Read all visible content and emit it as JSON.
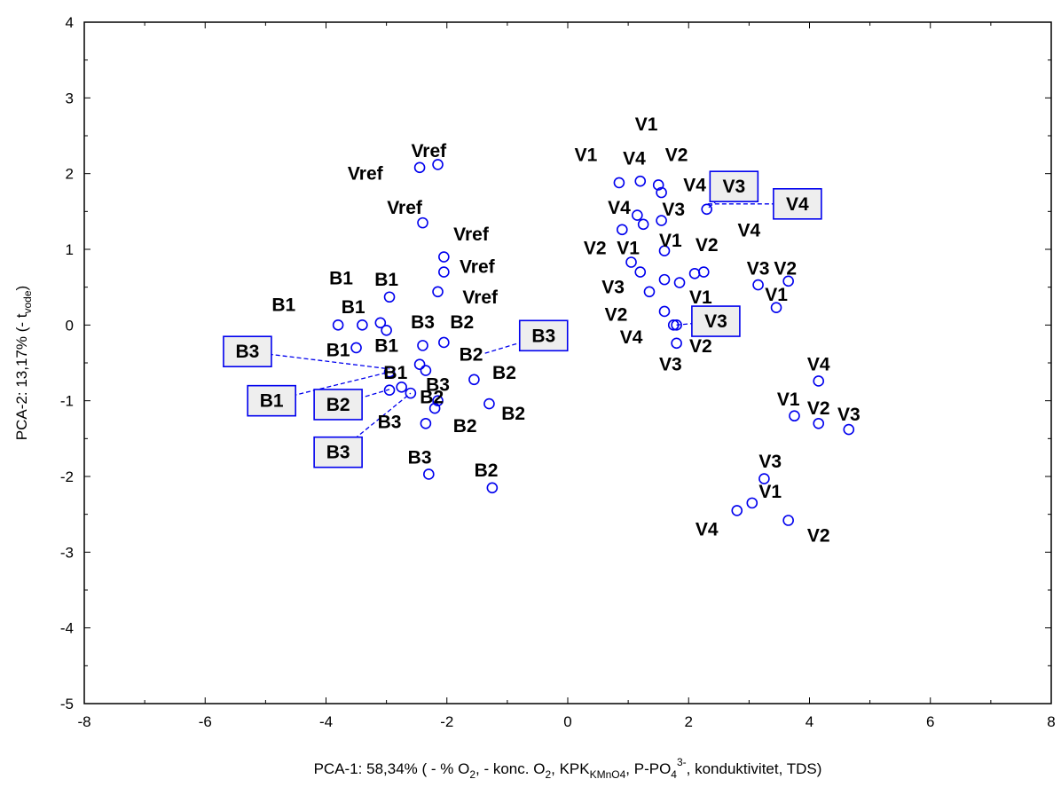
{
  "chart_data": {
    "type": "scatter",
    "xlabel_parts": [
      "PCA-1: 58,34% ( - % O",
      "2",
      ", - konc. O",
      "2",
      ", KPK",
      "KMnO4",
      ", P-PO",
      "4",
      "3-",
      ", konduktivitet, TDS)"
    ],
    "ylabel_parts": [
      "PCA-2: 13,17% (- t",
      "vode",
      ")"
    ],
    "xlim": [
      -8,
      8
    ],
    "ylim": [
      -5,
      4
    ],
    "xticks": [
      "-8",
      "-6",
      "-4",
      "-2",
      "0",
      "2",
      "4",
      "6",
      "8"
    ],
    "yticks": [
      "-5",
      "-4",
      "-3",
      "-2",
      "-1",
      "0",
      "1",
      "2",
      "3",
      "4"
    ],
    "grid": false,
    "marker_color": "#0000ee",
    "points": [
      {
        "x": -2.45,
        "y": 2.08,
        "label": "Vref"
      },
      {
        "x": -2.15,
        "y": 2.12,
        "label": "Vref"
      },
      {
        "x": -2.4,
        "y": 1.35,
        "label": "Vref"
      },
      {
        "x": -2.05,
        "y": 0.9,
        "label": "Vref"
      },
      {
        "x": -2.05,
        "y": 0.7,
        "label": "Vref"
      },
      {
        "x": -2.15,
        "y": 0.44,
        "label": "Vref"
      },
      {
        "x": -3.8,
        "y": 0.0,
        "label": "B1"
      },
      {
        "x": -3.4,
        "y": 0.0,
        "label": "B1"
      },
      {
        "x": -2.95,
        "y": 0.37,
        "label": "B1"
      },
      {
        "x": -3.5,
        "y": -0.3,
        "label": "B1"
      },
      {
        "x": -3.1,
        "y": 0.03,
        "label": "B1"
      },
      {
        "x": -3.0,
        "y": -0.07,
        "label": "B1"
      },
      {
        "x": -2.95,
        "y": -0.62,
        "label": "B1"
      },
      {
        "x": -2.75,
        "y": -0.82,
        "label": "B1"
      },
      {
        "x": -2.4,
        "y": -0.27,
        "label": "B3"
      },
      {
        "x": -2.05,
        "y": -0.23,
        "label": "B2"
      },
      {
        "x": -2.45,
        "y": -0.52,
        "label": "B3"
      },
      {
        "x": -2.35,
        "y": -0.6,
        "label": "B2"
      },
      {
        "x": -1.55,
        "y": -0.72,
        "label": "B2"
      },
      {
        "x": -2.6,
        "y": -0.9,
        "label": "B3"
      },
      {
        "x": -2.95,
        "y": -0.86,
        "label": "B2"
      },
      {
        "x": -2.15,
        "y": -1.0,
        "label": "B3"
      },
      {
        "x": -2.2,
        "y": -1.1,
        "label": "B2"
      },
      {
        "x": -2.35,
        "y": -1.3,
        "label": "B3"
      },
      {
        "x": -1.3,
        "y": -1.04,
        "label": "B2"
      },
      {
        "x": -2.3,
        "y": -1.97,
        "label": "B3"
      },
      {
        "x": -1.25,
        "y": -2.15,
        "label": "B2"
      },
      {
        "x": 0.85,
        "y": 1.88,
        "label": "V1"
      },
      {
        "x": 1.2,
        "y": 1.9,
        "label": "V4"
      },
      {
        "x": 1.5,
        "y": 1.85,
        "label": "V2"
      },
      {
        "x": 1.55,
        "y": 1.75,
        "label": "V1"
      },
      {
        "x": 2.3,
        "y": 1.53,
        "label": "V4"
      },
      {
        "x": 1.15,
        "y": 1.45,
        "label": "V4"
      },
      {
        "x": 1.25,
        "y": 1.33,
        "label": "V3"
      },
      {
        "x": 1.55,
        "y": 1.38,
        "label": "V3"
      },
      {
        "x": 0.9,
        "y": 1.26,
        "label": "V2"
      },
      {
        "x": 1.6,
        "y": 0.98,
        "label": "V1"
      },
      {
        "x": 1.05,
        "y": 0.83,
        "label": "V1"
      },
      {
        "x": 1.2,
        "y": 0.7,
        "label": "V2"
      },
      {
        "x": 2.1,
        "y": 0.68,
        "label": "V2"
      },
      {
        "x": 2.25,
        "y": 0.7,
        "label": "V4"
      },
      {
        "x": 1.6,
        "y": 0.6,
        "label": "V3"
      },
      {
        "x": 1.85,
        "y": 0.56,
        "label": "V1"
      },
      {
        "x": 1.35,
        "y": 0.44,
        "label": "V3"
      },
      {
        "x": 1.6,
        "y": 0.18,
        "label": "V2"
      },
      {
        "x": 1.75,
        "y": 0.0,
        "label": "V3"
      },
      {
        "x": 1.8,
        "y": 0.0,
        "label": "V4"
      },
      {
        "x": 1.8,
        "y": -0.24,
        "label": "V2"
      },
      {
        "x": 3.15,
        "y": 0.53,
        "label": "V3"
      },
      {
        "x": 3.65,
        "y": 0.58,
        "label": "V2"
      },
      {
        "x": 3.45,
        "y": 0.23,
        "label": "V1"
      },
      {
        "x": 4.15,
        "y": -0.74,
        "label": "V4"
      },
      {
        "x": 3.75,
        "y": -1.2,
        "label": "V1"
      },
      {
        "x": 4.15,
        "y": -1.3,
        "label": "V2"
      },
      {
        "x": 4.65,
        "y": -1.38,
        "label": "V3"
      },
      {
        "x": 3.25,
        "y": -2.03,
        "label": "V3"
      },
      {
        "x": 3.05,
        "y": -2.35,
        "label": "V1"
      },
      {
        "x": 2.8,
        "y": -2.45,
        "label": "V4"
      },
      {
        "x": 3.65,
        "y": -2.58,
        "label": "V2"
      }
    ],
    "labels": [
      {
        "text": "Vref",
        "x": -2.3,
        "y": 2.3
      },
      {
        "text": "Vref",
        "x": -3.35,
        "y": 2.0
      },
      {
        "text": "Vref",
        "x": -2.7,
        "y": 1.55
      },
      {
        "text": "Vref",
        "x": -1.6,
        "y": 1.2
      },
      {
        "text": "Vref",
        "x": -1.5,
        "y": 0.77
      },
      {
        "text": "Vref",
        "x": -1.45,
        "y": 0.37
      },
      {
        "text": "B1",
        "x": -4.7,
        "y": 0.27
      },
      {
        "text": "B1",
        "x": -3.75,
        "y": 0.62
      },
      {
        "text": "B1",
        "x": -3.0,
        "y": 0.6
      },
      {
        "text": "B1",
        "x": -3.55,
        "y": 0.24
      },
      {
        "text": "B1",
        "x": -3.8,
        "y": -0.33
      },
      {
        "text": "B1",
        "x": -3.0,
        "y": -0.27
      },
      {
        "text": "B1",
        "x": -2.85,
        "y": -0.63
      },
      {
        "text": "B3",
        "x": -2.4,
        "y": 0.04
      },
      {
        "text": "B2",
        "x": -1.75,
        "y": 0.04
      },
      {
        "text": "B2",
        "x": -1.6,
        "y": -0.39
      },
      {
        "text": "B2",
        "x": -1.05,
        "y": -0.63
      },
      {
        "text": "B3",
        "x": -2.15,
        "y": -0.79
      },
      {
        "text": "B2",
        "x": -2.25,
        "y": -0.95
      },
      {
        "text": "B2",
        "x": -0.9,
        "y": -1.17
      },
      {
        "text": "B3",
        "x": -2.95,
        "y": -1.28
      },
      {
        "text": "B2",
        "x": -1.7,
        "y": -1.33
      },
      {
        "text": "B3",
        "x": -2.45,
        "y": -1.75
      },
      {
        "text": "B2",
        "x": -1.35,
        "y": -1.92
      },
      {
        "text": "V1",
        "x": 1.3,
        "y": 2.65
      },
      {
        "text": "V1",
        "x": 0.3,
        "y": 2.25
      },
      {
        "text": "V4",
        "x": 1.1,
        "y": 2.2
      },
      {
        "text": "V2",
        "x": 1.8,
        "y": 2.25
      },
      {
        "text": "V4",
        "x": 2.1,
        "y": 1.85
      },
      {
        "text": "V4",
        "x": 0.85,
        "y": 1.55
      },
      {
        "text": "V3",
        "x": 1.75,
        "y": 1.53
      },
      {
        "text": "V4",
        "x": 3.0,
        "y": 1.25
      },
      {
        "text": "V2",
        "x": 0.45,
        "y": 1.02
      },
      {
        "text": "V1",
        "x": 1.0,
        "y": 1.02
      },
      {
        "text": "V1",
        "x": 1.7,
        "y": 1.12
      },
      {
        "text": "V2",
        "x": 2.3,
        "y": 1.06
      },
      {
        "text": "V3",
        "x": 0.75,
        "y": 0.5
      },
      {
        "text": "V1",
        "x": 2.2,
        "y": 0.37
      },
      {
        "text": "V2",
        "x": 0.8,
        "y": 0.14
      },
      {
        "text": "V4",
        "x": 1.05,
        "y": -0.16
      },
      {
        "text": "V2",
        "x": 2.2,
        "y": -0.28
      },
      {
        "text": "V3",
        "x": 1.7,
        "y": -0.52
      },
      {
        "text": "V3",
        "x": 3.15,
        "y": 0.75
      },
      {
        "text": "V2",
        "x": 3.6,
        "y": 0.75
      },
      {
        "text": "V1",
        "x": 3.45,
        "y": 0.4
      },
      {
        "text": "V4",
        "x": 4.15,
        "y": -0.52
      },
      {
        "text": "V1",
        "x": 3.65,
        "y": -0.98
      },
      {
        "text": "V2",
        "x": 4.15,
        "y": -1.1
      },
      {
        "text": "V3",
        "x": 4.65,
        "y": -1.18
      },
      {
        "text": "V3",
        "x": 3.35,
        "y": -1.8
      },
      {
        "text": "V1",
        "x": 3.35,
        "y": -2.2
      },
      {
        "text": "V4",
        "x": 2.3,
        "y": -2.7
      },
      {
        "text": "V2",
        "x": 4.15,
        "y": -2.78
      }
    ],
    "boxed_labels": [
      {
        "text": "V3",
        "x": 2.75,
        "y": 1.83,
        "lx": 2.3,
        "ly": 1.53
      },
      {
        "text": "V4",
        "x": 3.8,
        "y": 1.6,
        "lx": 2.3,
        "ly": 1.6
      },
      {
        "text": "V3",
        "x": 2.45,
        "y": 0.05,
        "lx": 1.8,
        "ly": 0.0
      },
      {
        "text": "B3",
        "x": -0.4,
        "y": -0.14,
        "lx": -1.4,
        "ly": -0.38
      },
      {
        "text": "B3",
        "x": -5.3,
        "y": -0.35,
        "lx": -2.95,
        "ly": -0.58
      },
      {
        "text": "B1",
        "x": -4.9,
        "y": -1.0,
        "lx": -2.95,
        "ly": -0.62
      },
      {
        "text": "B2",
        "x": -3.8,
        "y": -1.05,
        "lx": -2.95,
        "ly": -0.85
      },
      {
        "text": "B3",
        "x": -3.8,
        "y": -1.68,
        "lx": -2.6,
        "ly": -0.9
      }
    ]
  }
}
